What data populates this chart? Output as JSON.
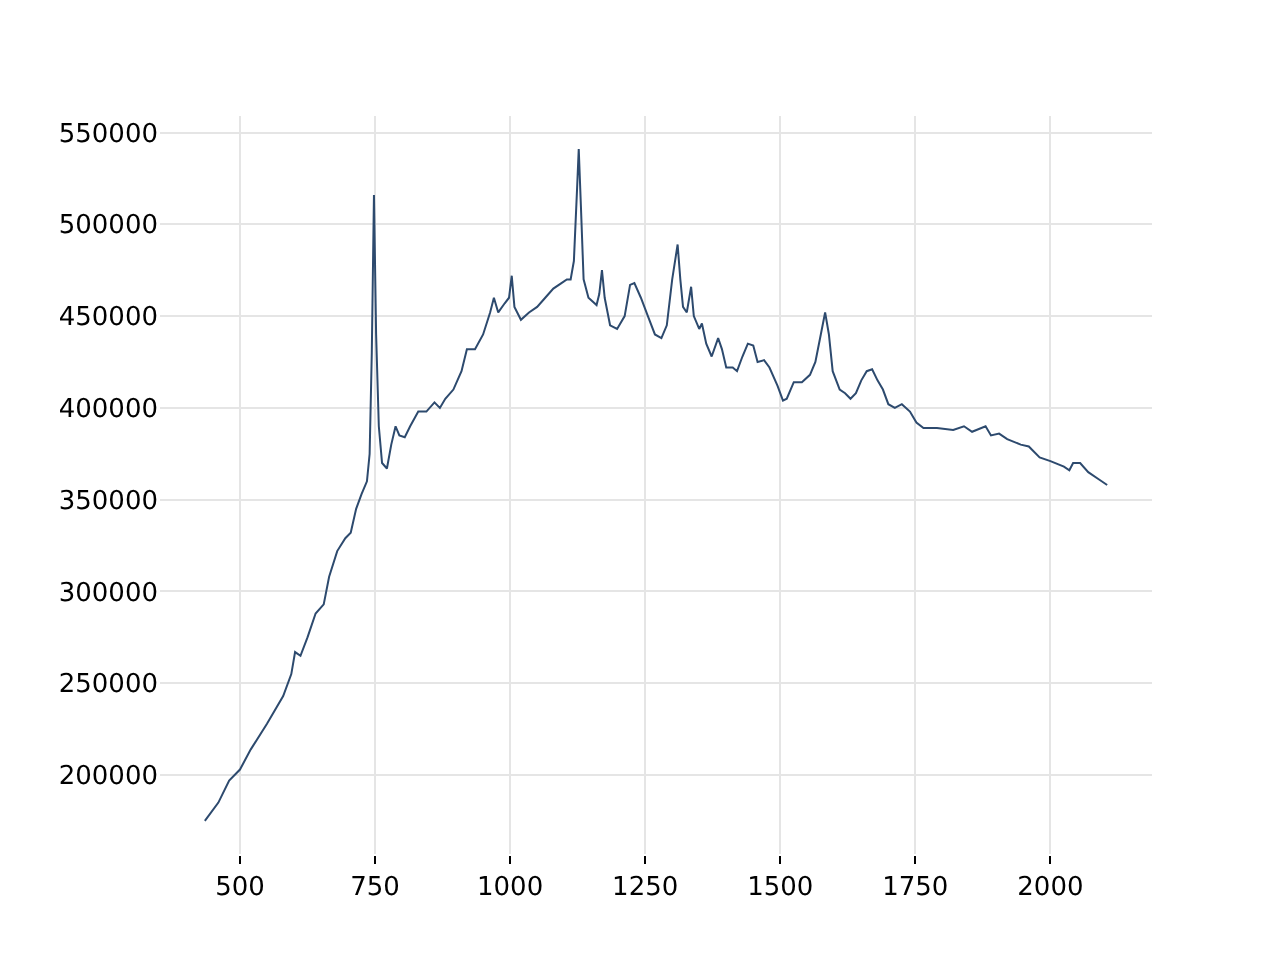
{
  "chart_data": {
    "type": "line",
    "xlim": [
      352,
      2188
    ],
    "ylim": [
      157000,
      559000
    ],
    "xticks": [
      500,
      750,
      1000,
      1250,
      1500,
      1750,
      2000
    ],
    "yticks": [
      200000,
      250000,
      300000,
      350000,
      400000,
      450000,
      500000,
      550000
    ],
    "grid": true,
    "marker": "none",
    "line_style": "solid",
    "series": [
      {
        "color": "#2d4a6e",
        "x": [
          435,
          460,
          480,
          500,
          520,
          550,
          580,
          595,
          602,
          612,
          625,
          640,
          655,
          665,
          680,
          695,
          705,
          715,
          725,
          735,
          740,
          744,
          748,
          752,
          757,
          763,
          772,
          780,
          788,
          795,
          805,
          815,
          830,
          845,
          860,
          870,
          880,
          895,
          910,
          920,
          935,
          950,
          963,
          970,
          978,
          990,
          998,
          1003,
          1008,
          1020,
          1035,
          1050,
          1065,
          1080,
          1095,
          1105,
          1112,
          1118,
          1124,
          1127,
          1131,
          1136,
          1145,
          1160,
          1165,
          1170,
          1175,
          1185,
          1198,
          1212,
          1222,
          1230,
          1242,
          1255,
          1268,
          1280,
          1290,
          1300,
          1310,
          1315,
          1320,
          1327,
          1335,
          1340,
          1350,
          1355,
          1363,
          1373,
          1385,
          1392,
          1400,
          1412,
          1420,
          1430,
          1440,
          1450,
          1458,
          1470,
          1480,
          1495,
          1505,
          1512,
          1525,
          1540,
          1555,
          1565,
          1575,
          1583,
          1590,
          1597,
          1610,
          1620,
          1630,
          1640,
          1650,
          1660,
          1670,
          1680,
          1690,
          1700,
          1712,
          1725,
          1740,
          1752,
          1765,
          1790,
          1820,
          1840,
          1855,
          1880,
          1890,
          1905,
          1920,
          1945,
          1960,
          1980,
          2000,
          2025,
          2035,
          2042,
          2055,
          2070,
          2090,
          2105
        ],
        "values": [
          175000,
          185000,
          197000,
          203000,
          214000,
          228000,
          243000,
          255000,
          267000,
          265000,
          275000,
          288000,
          293000,
          308000,
          322000,
          329000,
          332000,
          345000,
          353000,
          360000,
          375000,
          430000,
          516000,
          440000,
          390000,
          370000,
          367000,
          380000,
          390000,
          385000,
          384000,
          390000,
          398000,
          398000,
          403000,
          400000,
          405000,
          410000,
          420000,
          432000,
          432000,
          440000,
          452000,
          460000,
          452000,
          457000,
          460000,
          472000,
          455000,
          448000,
          452000,
          455000,
          460000,
          465000,
          468000,
          470000,
          470000,
          480000,
          520000,
          541000,
          510000,
          470000,
          460000,
          456000,
          462000,
          475000,
          460000,
          445000,
          443000,
          450000,
          467000,
          468000,
          460000,
          450000,
          440000,
          438000,
          445000,
          470000,
          489000,
          470000,
          455000,
          452000,
          466000,
          450000,
          443000,
          446000,
          435000,
          428000,
          438000,
          432000,
          422000,
          422000,
          420000,
          428000,
          435000,
          434000,
          425000,
          426000,
          422000,
          412000,
          404000,
          405000,
          414000,
          414000,
          418000,
          425000,
          440000,
          452000,
          440000,
          420000,
          410000,
          408000,
          405000,
          408000,
          415000,
          420000,
          421000,
          415000,
          410000,
          402000,
          400000,
          402000,
          398000,
          392000,
          389000,
          389000,
          388000,
          390000,
          387000,
          390000,
          385000,
          386000,
          383000,
          380000,
          379000,
          373000,
          371000,
          368000,
          366000,
          370000,
          370000,
          365000,
          361000,
          358000
        ]
      }
    ]
  }
}
